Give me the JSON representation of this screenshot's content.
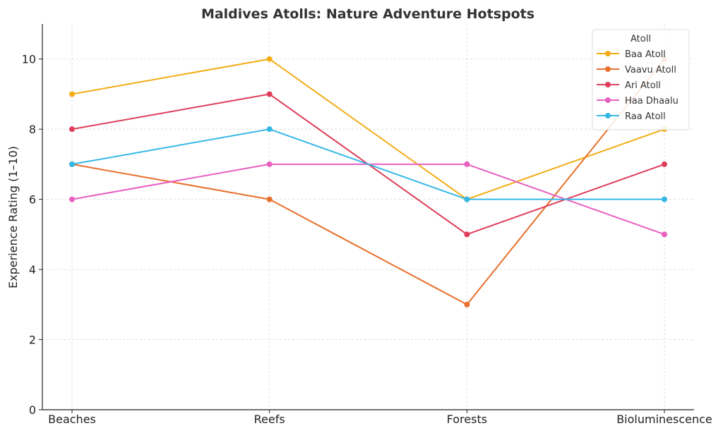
{
  "chart_data": {
    "type": "line",
    "title": "Maldives Atolls: Nature Adventure Hotspots",
    "xlabel": "",
    "ylabel": "Experience Rating (1–10)",
    "categories": [
      "Beaches",
      "Reefs",
      "Forests",
      "Bioluminescence"
    ],
    "ylim": [
      0,
      11
    ],
    "yticks": [
      0,
      2,
      4,
      6,
      8,
      10
    ],
    "grid": true,
    "legend": {
      "title": "Atoll",
      "placement": "top-right"
    },
    "series": [
      {
        "name": "Baa Atoll",
        "color": "#f2ad16",
        "values": [
          9,
          10,
          6,
          8
        ]
      },
      {
        "name": "Vaavu Atoll",
        "color": "#e8702c",
        "values": [
          7,
          6,
          3,
          10
        ]
      },
      {
        "name": "Ari Atoll",
        "color": "#de3e5a",
        "values": [
          8,
          9,
          5,
          7
        ]
      },
      {
        "name": "Haa Dhaalu",
        "color": "#e860c0",
        "values": [
          6,
          7,
          7,
          5
        ]
      },
      {
        "name": "Raa Atoll",
        "color": "#35b8e6",
        "values": [
          7,
          8,
          6,
          6
        ]
      }
    ]
  }
}
